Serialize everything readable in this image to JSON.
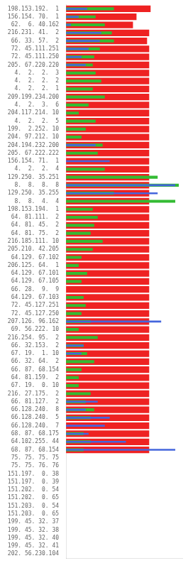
{
  "chart_data": {
    "type": "bar",
    "orientation": "horizontal",
    "categories": [
      "198.153.192.  1",
      "156.154. 70.  1",
      " 62.  6. 40.162",
      "216.231. 41.  2",
      " 66. 33. 57.  2",
      " 72. 45.111.251",
      " 72. 45.111.250",
      "205. 67.220.220",
      "  4.  2.  2.  3",
      "  4.  2.  2.  2",
      "  4.  2.  2.  1",
      "209.199.234.200",
      "  4.  2.  3.  6",
      "204.117.214. 10",
      "  4.  2.  2.  5",
      " 199.  2.252. 10",
      " 204. 97.212. 10",
      "204.194.232.200",
      "205. 67.222.222",
      "156.154. 71.  1",
      "  4.  2.  2.  4",
      "129.250. 35.251",
      "  8.  8.  8.  8",
      "129.250. 35.255",
      "  8.  8.  4.  4",
      "198.153.194.  1",
      " 64. 81.111.  2",
      " 64. 81. 45.  2",
      " 64. 81. 75.  2",
      "216.185.111. 10",
      "205.210. 42.205",
      " 64.129. 67.102",
      "206.125. 64.  1",
      " 64.129. 67.101",
      " 64.129. 67.105",
      " 66. 28.  9.  9",
      " 64.129. 67.103",
      " 72. 45.127.251",
      " 72. 45.127.250",
      "207.126. 96.162",
      " 69. 56.222. 10",
      "216.254. 95.  2",
      " 66. 32.153.  2",
      " 67. 19.  1. 10",
      " 66. 32. 64.  2",
      " 66. 87. 68.154",
      " 64. 81.159.  2",
      " 67. 19.  0. 10",
      "216. 27.175.  2",
      " 66. 81.127.  2",
      "66.128.240.  8",
      " 66.128.240.  5",
      " 66.128.240.  7",
      " 68. 87. 68.175",
      " 64.102.255. 44",
      " 68. 87. 68.154",
      " 75. 75. 75. 75",
      " 75. 75. 76. 76",
      "151.197.  0. 38",
      "151.197.  0. 39",
      "151.202.  0. 54",
      "151.202.  0. 65",
      "151.203.  0. 54",
      "151.203.  0. 65",
      "199. 45. 32. 37",
      "199. 45. 32. 38",
      "199. 45. 32. 40",
      "199. 45. 32. 41",
      "202. 56.230.104"
    ],
    "series": [
      {
        "color": "#ee2222",
        "values": [
          120,
          100,
          95,
          118,
          115,
          118,
          118,
          118,
          118,
          118,
          118,
          118,
          118,
          118,
          118,
          118,
          118,
          118,
          118,
          118,
          118,
          118,
          118,
          118,
          118,
          118,
          118,
          118,
          118,
          118,
          118,
          118,
          118,
          118,
          118,
          118,
          118,
          118,
          118,
          118,
          118,
          118,
          118,
          118,
          118,
          118,
          118,
          118,
          118,
          118,
          118,
          118,
          118,
          118,
          118,
          118,
          0,
          0,
          0,
          0,
          0,
          0,
          0,
          0,
          0,
          0,
          0,
          0,
          0
        ]
      },
      {
        "color": "#33bb33",
        "values": [
          68,
          42,
          55,
          65,
          68,
          48,
          40,
          38,
          42,
          50,
          38,
          55,
          32,
          18,
          42,
          28,
          22,
          52,
          45,
          0,
          55,
          130,
          160,
          68,
          155,
          38,
          45,
          40,
          35,
          52,
          38,
          22,
          18,
          30,
          22,
          0,
          25,
          28,
          22,
          35,
          18,
          45,
          25,
          30,
          40,
          22,
          18,
          18,
          35,
          28,
          40,
          35,
          0,
          25,
          35,
          25,
          0,
          0,
          0,
          0,
          0,
          0,
          0,
          0,
          0,
          0,
          0,
          0,
          0
        ]
      },
      {
        "color": "#4466dd",
        "values": [
          30,
          18,
          7,
          50,
          48,
          32,
          22,
          28,
          0,
          0,
          0,
          0,
          0,
          0,
          0,
          0,
          0,
          42,
          0,
          62,
          0,
          0,
          155,
          130,
          0,
          0,
          0,
          0,
          0,
          0,
          0,
          0,
          0,
          0,
          0,
          0,
          0,
          0,
          0,
          135,
          0,
          0,
          25,
          22,
          0,
          0,
          0,
          0,
          0,
          45,
          28,
          62,
          55,
          32,
          85,
          155,
          0,
          0,
          0,
          0,
          0,
          0,
          0,
          0,
          0,
          0,
          0,
          0,
          0
        ]
      }
    ],
    "xlim": [
      0,
      165
    ],
    "grid": false,
    "tick_labels": "y"
  }
}
